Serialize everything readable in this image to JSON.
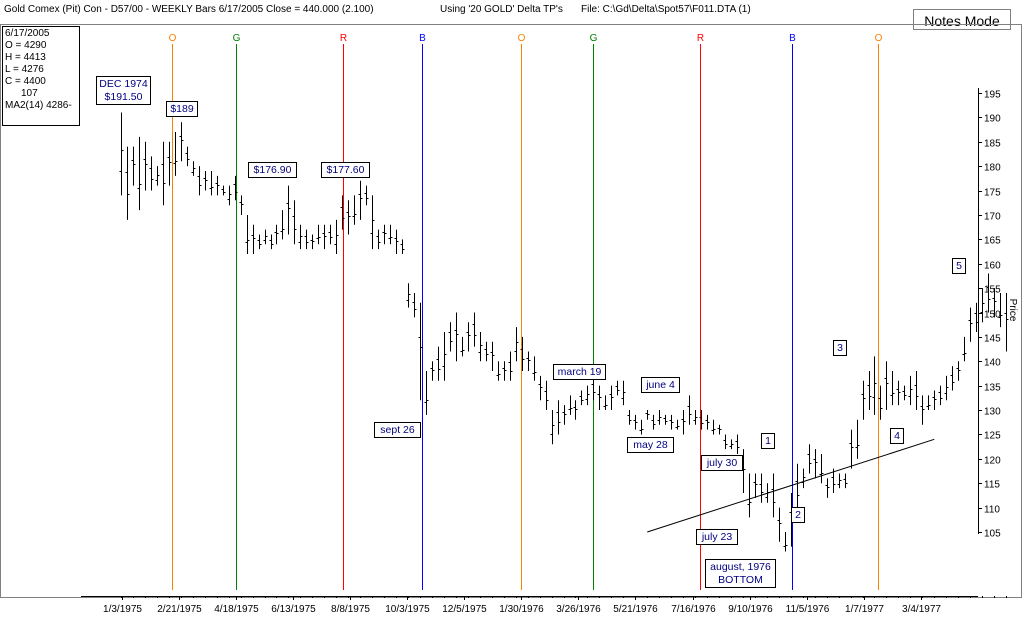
{
  "window": {
    "title_left": "Gold Comex (Pit) Con - D57/00  -  WEEKLY Bars  6/17/2005 Close = 440.000 (2.100)",
    "title_middle": "Using '20 GOLD' Delta TP's",
    "title_right": "File: C:\\Gd\\Delta\\Spot57\\F011.DTA (1)",
    "notes_button": "Notes Mode"
  },
  "info_box": {
    "date": "6/17/2005",
    "open": "O = 4290",
    "high": "H = 4413",
    "low": "L = 4276",
    "close": "C = 4400",
    "volume": "107",
    "ma": "MA2(14) 4286-"
  },
  "colors": {
    "O": "#ff8000",
    "G": "#008000",
    "R": "#ff0000",
    "B": "#0000ff",
    "bars": "#000000",
    "labels": "#000080"
  },
  "chart_data": {
    "type": "bar",
    "subtype": "ohlc",
    "ylabel": "Price",
    "ylim": [
      100,
      197
    ],
    "yticks": [
      105,
      110,
      115,
      120,
      125,
      130,
      135,
      140,
      145,
      150,
      155,
      160,
      165,
      170,
      175,
      180,
      185,
      190,
      195
    ],
    "xtick_labels": [
      "1/3/1975",
      "2/21/1975",
      "4/18/1975",
      "6/13/1975",
      "8/8/1975",
      "10/3/1975",
      "12/5/1975",
      "1/30/1976",
      "3/26/1976",
      "5/21/1976",
      "7/16/1976",
      "9/10/1976",
      "11/5/1976",
      "1/7/1977",
      "3/4/1977"
    ],
    "vertical_markers": [
      {
        "label": "O",
        "date": "2/21/1975"
      },
      {
        "label": "G",
        "date": "4/25/1975"
      },
      {
        "label": "R",
        "date": "8/8/1975"
      },
      {
        "label": "B",
        "date": "10/24/1975"
      },
      {
        "label": "O",
        "date": "1/30/1976"
      },
      {
        "label": "G",
        "date": "4/9/1976"
      },
      {
        "label": "R",
        "date": "7/23/1976"
      },
      {
        "label": "B",
        "date": "10/22/1976"
      },
      {
        "label": "O",
        "date": "1/14/1977"
      }
    ],
    "annotations": [
      {
        "lines": [
          "DEC 1974",
          "$191.50"
        ]
      },
      {
        "lines": [
          "$189"
        ]
      },
      {
        "lines": [
          "$176.90"
        ]
      },
      {
        "lines": [
          "$177.60"
        ]
      },
      {
        "lines": [
          "sept 26"
        ]
      },
      {
        "lines": [
          "march 19"
        ]
      },
      {
        "lines": [
          "june 4"
        ]
      },
      {
        "lines": [
          "may 28"
        ]
      },
      {
        "lines": [
          "july 30"
        ]
      },
      {
        "lines": [
          "july 23"
        ]
      },
      {
        "lines": [
          "august, 1976",
          "BOTTOM"
        ]
      },
      {
        "lines": [
          "1"
        ]
      },
      {
        "lines": [
          "2"
        ]
      },
      {
        "lines": [
          "3"
        ]
      },
      {
        "lines": [
          "4"
        ]
      },
      {
        "lines": [
          "5"
        ]
      }
    ],
    "trendline": {
      "start": {
        "week": 88,
        "price": 105
      },
      "end": {
        "week": 136,
        "price": 124
      }
    },
    "weekly_bars": [
      [
        191,
        174
      ],
      [
        184,
        169
      ],
      [
        184,
        176
      ],
      [
        186,
        171
      ],
      [
        185,
        175
      ],
      [
        182,
        175
      ],
      [
        180,
        176
      ],
      [
        185,
        172
      ],
      [
        185,
        176
      ],
      [
        187,
        178
      ],
      [
        189,
        181
      ],
      [
        184,
        180
      ],
      [
        181,
        178
      ],
      [
        180,
        174
      ],
      [
        179,
        175
      ],
      [
        179,
        174
      ],
      [
        178,
        174
      ],
      [
        176,
        174
      ],
      [
        176,
        172
      ],
      [
        178,
        173
      ],
      [
        174,
        170
      ],
      [
        170,
        162
      ],
      [
        168,
        162
      ],
      [
        166,
        163
      ],
      [
        167,
        164
      ],
      [
        166,
        163
      ],
      [
        168,
        164
      ],
      [
        171,
        165
      ],
      [
        176,
        166
      ],
      [
        173,
        164
      ],
      [
        168,
        163
      ],
      [
        167,
        163
      ],
      [
        166,
        163
      ],
      [
        168,
        164
      ],
      [
        168,
        163
      ],
      [
        168,
        164
      ],
      [
        169,
        162
      ],
      [
        174,
        167
      ],
      [
        173,
        166
      ],
      [
        174,
        168
      ],
      [
        177,
        169
      ],
      [
        176,
        172
      ],
      [
        174,
        163
      ],
      [
        167,
        163
      ],
      [
        168,
        164
      ],
      [
        168,
        164
      ],
      [
        167,
        162
      ],
      [
        165,
        162
      ],
      [
        156,
        151
      ],
      [
        154,
        149
      ],
      [
        152,
        132
      ],
      [
        138,
        129
      ],
      [
        140,
        136
      ],
      [
        143,
        136
      ],
      [
        146,
        136
      ],
      [
        148,
        142
      ],
      [
        150,
        140
      ],
      [
        145,
        141
      ],
      [
        148,
        142
      ],
      [
        150,
        143
      ],
      [
        146,
        140
      ],
      [
        144,
        140
      ],
      [
        144,
        138
      ],
      [
        140,
        136
      ],
      [
        140,
        136
      ],
      [
        142,
        136
      ],
      [
        147,
        140
      ],
      [
        145,
        138
      ],
      [
        142,
        138
      ],
      [
        141,
        136
      ],
      [
        137,
        132
      ],
      [
        136,
        130
      ],
      [
        130,
        123
      ],
      [
        132,
        125
      ],
      [
        131,
        127
      ],
      [
        133,
        129
      ],
      [
        132,
        128
      ],
      [
        134,
        131
      ],
      [
        135,
        131
      ],
      [
        137,
        132
      ],
      [
        135,
        130
      ],
      [
        133,
        130
      ],
      [
        135,
        130
      ],
      [
        136,
        133
      ],
      [
        136,
        131
      ],
      [
        130,
        127
      ],
      [
        129,
        126
      ],
      [
        128,
        125
      ],
      [
        130,
        128
      ],
      [
        129,
        126
      ],
      [
        130,
        127
      ],
      [
        129,
        127
      ],
      [
        129,
        126
      ],
      [
        128,
        126
      ],
      [
        130,
        125
      ],
      [
        133,
        127
      ],
      [
        130,
        127
      ],
      [
        130,
        126
      ],
      [
        129,
        126
      ],
      [
        128,
        125
      ],
      [
        127,
        125
      ],
      [
        125,
        122
      ],
      [
        124,
        122
      ],
      [
        125,
        121
      ],
      [
        122,
        113
      ],
      [
        117,
        108
      ],
      [
        117,
        112
      ],
      [
        117,
        111
      ],
      [
        115,
        111
      ],
      [
        117,
        108
      ],
      [
        110,
        103
      ],
      [
        105,
        101
      ],
      [
        113,
        102
      ],
      [
        119,
        109
      ],
      [
        118,
        114
      ],
      [
        123,
        117
      ],
      [
        122,
        116
      ],
      [
        121,
        115
      ],
      [
        116,
        112
      ],
      [
        118,
        113
      ],
      [
        117,
        114
      ],
      [
        117,
        114
      ],
      [
        126,
        118
      ],
      [
        128,
        120
      ],
      [
        136,
        128
      ],
      [
        138,
        130
      ],
      [
        141,
        129
      ],
      [
        135,
        128
      ],
      [
        140,
        130
      ],
      [
        138,
        131
      ],
      [
        136,
        131
      ],
      [
        135,
        132
      ],
      [
        137,
        131
      ],
      [
        138,
        130
      ],
      [
        133,
        127
      ],
      [
        133,
        130
      ],
      [
        134,
        130
      ],
      [
        135,
        131
      ],
      [
        137,
        132
      ],
      [
        139,
        134
      ],
      [
        140,
        136
      ],
      [
        145,
        140
      ],
      [
        151,
        144
      ],
      [
        152,
        146
      ],
      [
        155,
        148
      ],
      [
        158,
        150
      ],
      [
        155,
        149
      ],
      [
        154,
        147
      ],
      [
        154,
        142
      ]
    ]
  }
}
